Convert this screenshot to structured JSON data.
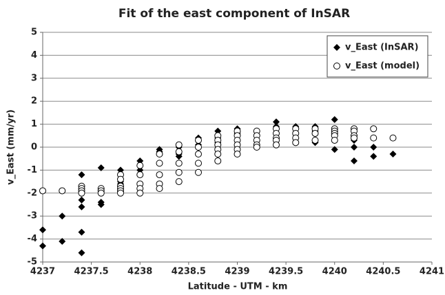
{
  "chart_data": {
    "type": "scatter",
    "title": "Fit of the east component of InSAR",
    "x_label": "Latitude - UTM - km",
    "y_label": "v_East (mm/yr)",
    "xlim": [
      4237,
      4241
    ],
    "xticks": [
      4237,
      4237.5,
      4238,
      4238.5,
      4239,
      4239.5,
      4240,
      4240.5,
      4241
    ],
    "ylim": [
      -5,
      5
    ],
    "yticks": [
      -5,
      -4,
      -3,
      -2,
      -1,
      0,
      1,
      2,
      3,
      4,
      5
    ],
    "grid": true,
    "legend": "upper right",
    "series": [
      {
        "name": "v_East (InSAR)",
        "marker": "diamond",
        "color": "#000000",
        "x": [
          4237,
          4237,
          4237.2,
          4237.2,
          4237.4,
          4237.4,
          4237.4,
          4237.4,
          4237.4,
          4237.6,
          4237.6,
          4237.6,
          4237.8,
          4237.8,
          4237.8,
          4237.8,
          4238,
          4238,
          4238,
          4238.2,
          4238.2,
          4238.2,
          4238.4,
          4238.4,
          4238.4,
          4238.6,
          4238.6,
          4238.6,
          4238.8,
          4238.8,
          4238.8,
          4238.8,
          4239,
          4239,
          4239,
          4239.4,
          4239.4,
          4239.6,
          4239.6,
          4239.8,
          4239.8,
          4239.8,
          4240,
          4240,
          4240,
          4240.2,
          4240.2,
          4240.2,
          4240.4,
          4240.4,
          4240.6
        ],
        "y": [
          -3.6,
          -4.3,
          -3.0,
          -4.1,
          -1.2,
          -2.3,
          -2.6,
          -3.7,
          -4.6,
          -0.9,
          -2.4,
          -2.5,
          -1.0,
          -1.2,
          -1.5,
          -1.6,
          -0.6,
          -1.0,
          -1.2,
          -0.1,
          -0.2,
          -0.3,
          0.0,
          -0.3,
          -0.4,
          0.4,
          0.3,
          0.1,
          0.7,
          0.4,
          0.2,
          0.1,
          0.8,
          0.7,
          0.6,
          1.1,
          0.9,
          0.9,
          0.8,
          0.9,
          0.7,
          0.2,
          1.2,
          0.5,
          -0.1,
          0.3,
          0.0,
          -0.6,
          0.0,
          -0.4,
          -0.3
        ]
      },
      {
        "name": "v_East (model)",
        "marker": "circle",
        "color": "#000000",
        "x": [
          4237,
          4237.2,
          4237.4,
          4237.4,
          4237.4,
          4237.4,
          4237.6,
          4237.6,
          4237.6,
          4237.8,
          4237.8,
          4237.8,
          4237.8,
          4237.8,
          4237.8,
          4238,
          4238,
          4238,
          4238,
          4238,
          4238.2,
          4238.2,
          4238.2,
          4238.2,
          4238.2,
          4238.4,
          4238.4,
          4238.4,
          4238.4,
          4238.4,
          4238.6,
          4238.6,
          4238.6,
          4238.6,
          4238.6,
          4238.8,
          4238.8,
          4238.8,
          4238.8,
          4238.8,
          4238.8,
          4239,
          4239,
          4239,
          4239,
          4239,
          4239,
          4239.2,
          4239.2,
          4239.2,
          4239.2,
          4239.2,
          4239.4,
          4239.4,
          4239.4,
          4239.4,
          4239.4,
          4239.6,
          4239.6,
          4239.6,
          4239.6,
          4239.8,
          4239.8,
          4239.8,
          4240,
          4240,
          4240,
          4240,
          4240,
          4240.2,
          4240.2,
          4240.2,
          4240.2,
          4240.4,
          4240.4,
          4240.6
        ],
        "y": [
          -1.9,
          -1.9,
          -1.7,
          -1.8,
          -1.9,
          -2.0,
          -1.8,
          -1.9,
          -2.0,
          -1.2,
          -1.4,
          -1.7,
          -1.8,
          -1.9,
          -2.0,
          -0.8,
          -1.2,
          -1.6,
          -1.8,
          -2.0,
          -0.3,
          -0.7,
          -1.2,
          -1.6,
          -1.8,
          0.1,
          -0.2,
          -0.7,
          -1.1,
          -1.5,
          0.3,
          0.0,
          -0.3,
          -0.7,
          -1.1,
          0.5,
          0.3,
          0.1,
          -0.1,
          -0.3,
          -0.6,
          0.7,
          0.5,
          0.3,
          0.1,
          -0.1,
          -0.3,
          0.7,
          0.5,
          0.3,
          0.1,
          0.0,
          0.8,
          0.6,
          0.4,
          0.3,
          0.1,
          0.8,
          0.6,
          0.4,
          0.2,
          0.8,
          0.6,
          0.3,
          0.8,
          0.7,
          0.6,
          0.5,
          0.3,
          0.8,
          0.7,
          0.5,
          0.4,
          0.8,
          0.4,
          0.4
        ]
      }
    ]
  }
}
